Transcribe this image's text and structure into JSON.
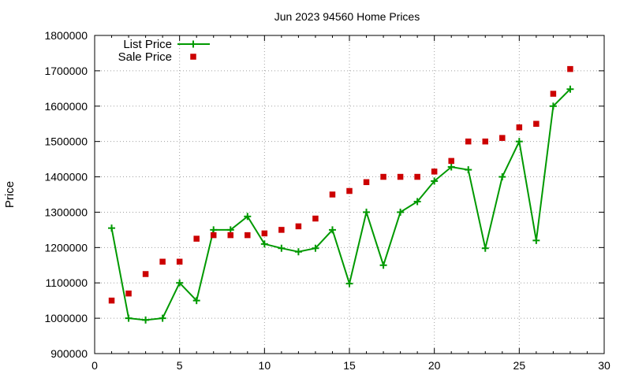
{
  "chart_data": {
    "type": "line",
    "title": "Jun 2023 94560 Home Prices",
    "xlabel": "",
    "ylabel": "Price",
    "xlim": [
      0,
      30
    ],
    "ylim": [
      900000,
      1800000
    ],
    "x_ticks": [
      0,
      5,
      10,
      15,
      20,
      25,
      30
    ],
    "y_ticks": [
      900000,
      1000000,
      1100000,
      1200000,
      1300000,
      1400000,
      1500000,
      1600000,
      1700000,
      1800000
    ],
    "grid": true,
    "legend_position": "top-left",
    "series": [
      {
        "name": "List Price",
        "style": "line-with-plus-markers",
        "color": "#009900",
        "x": [
          1,
          2,
          3,
          4,
          5,
          6,
          7,
          8,
          9,
          10,
          11,
          12,
          13,
          14,
          15,
          16,
          17,
          18,
          19,
          20,
          21,
          22,
          23,
          24,
          25,
          26,
          27,
          28
        ],
        "values": [
          1255000,
          1000000,
          995000,
          1000000,
          1100000,
          1050000,
          1250000,
          1250000,
          1288000,
          1210000,
          1198000,
          1188000,
          1198000,
          1250000,
          1098000,
          1300000,
          1150000,
          1300000,
          1330000,
          1388000,
          1428000,
          1420000,
          1198000,
          1400000,
          1500000,
          1220000,
          1600000,
          1648000
        ]
      },
      {
        "name": "Sale Price",
        "style": "square-markers",
        "color": "#cc0000",
        "x": [
          1,
          2,
          3,
          4,
          5,
          6,
          7,
          8,
          9,
          10,
          11,
          12,
          13,
          14,
          15,
          16,
          17,
          18,
          19,
          20,
          21,
          22,
          23,
          24,
          25,
          26,
          27,
          28
        ],
        "values": [
          1050000,
          1070000,
          1125000,
          1160000,
          1160000,
          1225000,
          1235000,
          1235000,
          1235000,
          1240000,
          1250000,
          1260000,
          1282000,
          1350000,
          1360000,
          1385000,
          1400000,
          1400000,
          1400000,
          1415000,
          1445000,
          1500000,
          1500000,
          1510000,
          1540000,
          1550000,
          1635000,
          1705000
        ]
      }
    ]
  }
}
